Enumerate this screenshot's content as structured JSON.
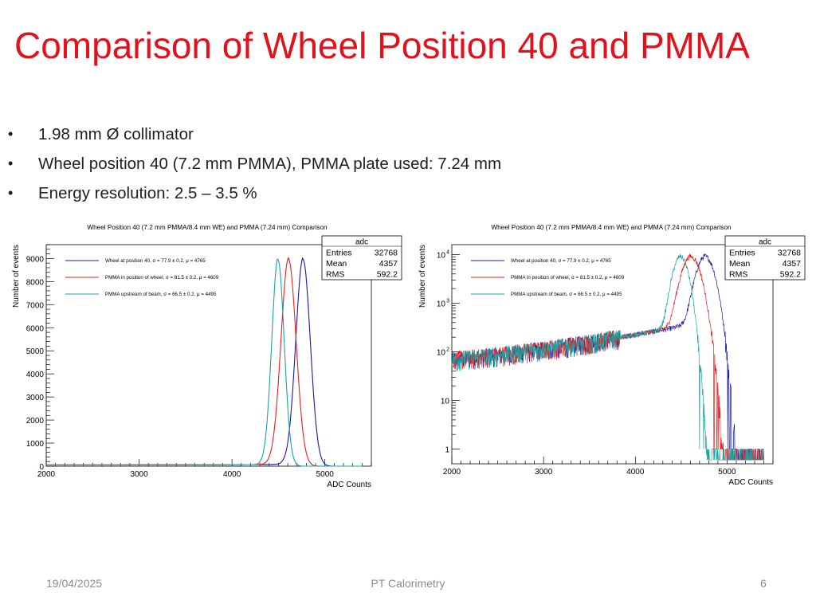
{
  "slide": {
    "title": "Comparison of Wheel Position 40 and PMMA",
    "bullet_marker": "•",
    "bullets": [
      "1.98 mm Ø collimator",
      "Wheel position 40 (7.2 mm PMMA), PMMA plate used: 7.24 mm",
      "Energy resolution: 2.5 – 3.5 %"
    ],
    "footer": {
      "date": "19/04/2025",
      "center": "PT Calorimetry",
      "page": "6"
    }
  },
  "colors": {
    "title": "#e2121c",
    "wheel": "#1a1a9e",
    "pmma_wheel": "#ee1c1c",
    "pmma_upstream": "#1aa3a3"
  },
  "chart_data": [
    {
      "type": "line",
      "title": "Wheel Position 40 (7.2 mm PMMA/8.4 mm WE) and PMMA (7.24 mm) Comparison",
      "xlabel": "ADC Counts",
      "ylabel": "Number of events",
      "xlim": [
        2000,
        5500
      ],
      "ylim": [
        0,
        9600
      ],
      "yscale": "linear",
      "xticks": [
        "2000",
        "3000",
        "4000",
        "5000"
      ],
      "yticks": [
        "0",
        "1000",
        "2000",
        "3000",
        "4000",
        "5000",
        "6000",
        "7000",
        "8000",
        "9000"
      ],
      "legend_position": "top-left",
      "stats": {
        "title": "adc",
        "rows": [
          [
            "Entries",
            "32768"
          ],
          [
            "Mean",
            "4357"
          ],
          [
            "RMS",
            "592.2"
          ]
        ]
      },
      "series": [
        {
          "name": "Wheel at position 40, σ = 77.9 ± 0.2, μ = 4765",
          "color": "#1a1a9e",
          "mu": 4765,
          "sigma": 77.9,
          "peak": 8950,
          "floor": 55
        },
        {
          "name": "PMMA in position of wheel, σ = 81.5 ± 0.2, μ = 4609",
          "color": "#ee1c1c",
          "mu": 4609,
          "sigma": 81.5,
          "peak": 8950,
          "floor": 55
        },
        {
          "name": "PMMA upstream of beam, σ = 66.5 ± 0.2, μ = 4495",
          "color": "#1aa3a3",
          "mu": 4495,
          "sigma": 66.5,
          "peak": 8950,
          "floor": 55
        }
      ]
    },
    {
      "type": "line",
      "title": "Wheel Position 40 (7.2 mm PMMA/8.4 mm WE) and PMMA (7.24 mm) Comparison",
      "xlabel": "ADC Counts",
      "ylabel": "Number of events",
      "xlim": [
        2000,
        5500
      ],
      "ylim": [
        0.5,
        16000
      ],
      "yscale": "log",
      "xticks": [
        "2000",
        "3000",
        "4000",
        "5000"
      ],
      "yticks": [
        {
          "value": 1,
          "label": "1"
        },
        {
          "value": 10,
          "label": "10"
        },
        {
          "value": 100,
          "label": "10",
          "exp": "2"
        },
        {
          "value": 1000,
          "label": "10",
          "exp": "3"
        },
        {
          "value": 10000,
          "label": "10",
          "exp": "4"
        }
      ],
      "legend_position": "top-left",
      "stats": {
        "title": "adc",
        "rows": [
          [
            "Entries",
            "32768"
          ],
          [
            "Mean",
            "4357"
          ],
          [
            "RMS",
            "592.2"
          ]
        ]
      },
      "series": [
        {
          "name": "Wheel at position 40, σ = 77.9 ± 0.2, μ = 4765",
          "color": "#1a1a9e",
          "mu": 4765,
          "sigma": 77.9,
          "peak": 8950,
          "floor": 55
        },
        {
          "name": "PMMA in position of wheel, σ = 81.5 ± 0.2, μ = 4609",
          "color": "#ee1c1c",
          "mu": 4609,
          "sigma": 81.5,
          "peak": 8950,
          "floor": 55
        },
        {
          "name": "PMMA upstream of beam, σ = 66.5 ± 0.2, μ = 4495",
          "color": "#1aa3a3",
          "mu": 4495,
          "sigma": 66.5,
          "peak": 8950,
          "floor": 55
        }
      ]
    }
  ]
}
